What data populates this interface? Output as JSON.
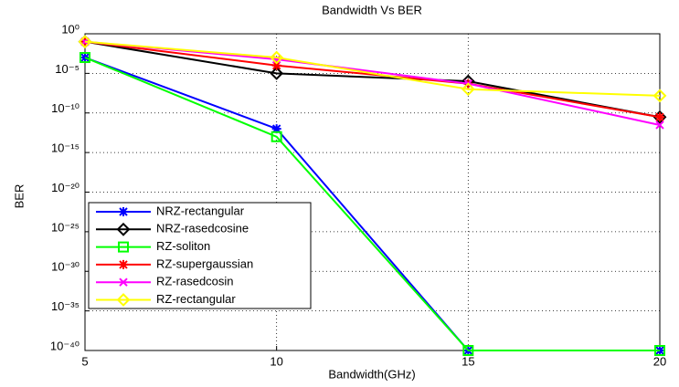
{
  "chart_data": {
    "type": "line",
    "title": "Bandwidth Vs BER",
    "xlabel": "Bandwidth(GHz)",
    "ylabel": "BER",
    "x": [
      5,
      10,
      15,
      20
    ],
    "xlim": [
      5,
      20
    ],
    "xticks": [
      5,
      10,
      15,
      20
    ],
    "ylim": [
      1e-40,
      1
    ],
    "log_y": true,
    "yticks": [
      {
        "value": 1,
        "label": "10⁰"
      },
      {
        "value": 1e-05,
        "label": "10⁻⁵"
      },
      {
        "value": 1e-10,
        "label": "10⁻¹⁰"
      },
      {
        "value": 1e-15,
        "label": "10⁻¹⁵"
      },
      {
        "value": 1e-20,
        "label": "10⁻²⁰"
      },
      {
        "value": 1e-25,
        "label": "10⁻²⁵"
      },
      {
        "value": 1e-30,
        "label": "10⁻³⁰"
      },
      {
        "value": 1e-35,
        "label": "10⁻³⁵"
      },
      {
        "value": 1e-40,
        "label": "10⁻⁴⁰"
      }
    ],
    "grid": true,
    "legend": "lower left",
    "series": [
      {
        "name": "NRZ-rectangular",
        "color": "#0000ff",
        "marker": "star",
        "values": [
          0.001,
          1e-12,
          1e-40,
          1e-40
        ]
      },
      {
        "name": "NRZ-rasedcosine",
        "color": "#000000",
        "marker": "diamond",
        "values": [
          0.1,
          1e-05,
          1e-06,
          3e-11
        ]
      },
      {
        "name": "RZ-soliton",
        "color": "#00ff00",
        "marker": "square",
        "values": [
          0.001,
          1e-13,
          1e-40,
          1e-40
        ]
      },
      {
        "name": "RZ-supergaussian",
        "color": "#ff0000",
        "marker": "star",
        "values": [
          0.1,
          0.0001,
          5e-07,
          3e-11
        ]
      },
      {
        "name": "RZ-rasedcosin",
        "color": "#ff00ff",
        "marker": "x",
        "values": [
          0.1,
          0.0006,
          5e-07,
          3e-12
        ]
      },
      {
        "name": "RZ-rectangular",
        "color": "#ffff00",
        "marker": "diamond",
        "values": [
          0.1,
          0.001,
          1e-07,
          1.5e-08
        ]
      }
    ]
  }
}
